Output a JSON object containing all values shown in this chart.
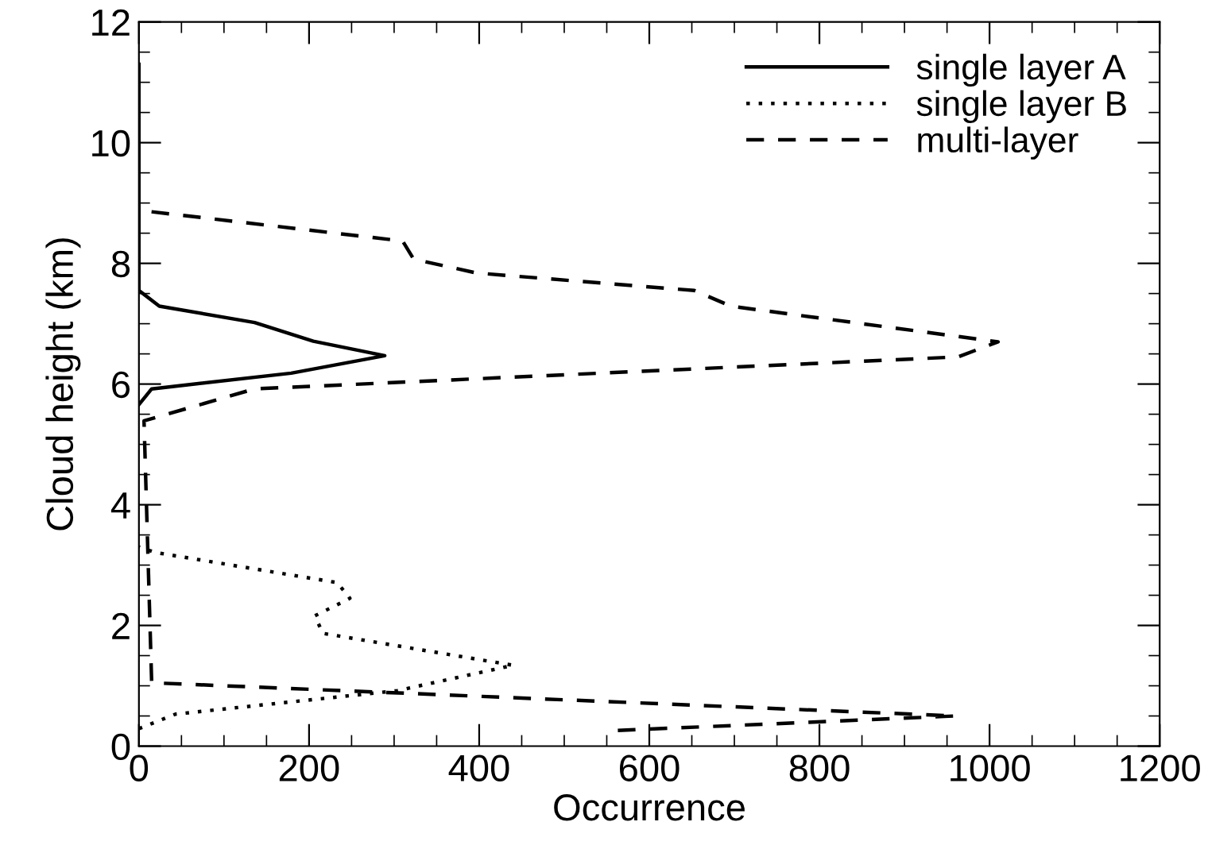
{
  "chart_data": {
    "type": "line",
    "xlabel": "Occurrence",
    "ylabel": "Cloud height (km)",
    "xlim": [
      0,
      1200
    ],
    "ylim": [
      0,
      12
    ],
    "xticks": [
      0,
      200,
      400,
      600,
      800,
      1000,
      1200
    ],
    "yticks": [
      0,
      2,
      4,
      6,
      8,
      10,
      12
    ],
    "grid": false,
    "legend": "top right",
    "marker": "none",
    "series": [
      {
        "name": "single layer A",
        "color": "#000000",
        "line_style": "solid",
        "x": [
          0,
          15,
          179,
          289,
          205,
          136,
          24,
          0,
          0
        ],
        "values": [
          5.66,
          5.92,
          6.18,
          6.47,
          6.71,
          7.02,
          7.29,
          7.55,
          11.3
        ]
      },
      {
        "name": "single layer B",
        "color": "#000000",
        "line_style": "dotted",
        "x": [
          0,
          43,
          304,
          440,
          216,
          207,
          248,
          233,
          19,
          0
        ],
        "values": [
          0.29,
          0.53,
          0.92,
          1.34,
          1.87,
          2.16,
          2.45,
          2.71,
          3.21,
          3.3
        ]
      },
      {
        "name": "multi-layer",
        "color": "#000000",
        "line_style": "dashed",
        "x": [
          563,
          960,
          15,
          6,
          136,
          963,
          1010,
          696,
          653,
          397,
          323,
          310,
          6
        ],
        "values": [
          0.26,
          0.5,
          1.05,
          5.39,
          5.92,
          6.45,
          6.7,
          7.29,
          7.55,
          7.84,
          8.07,
          8.37,
          8.87
        ]
      }
    ]
  }
}
